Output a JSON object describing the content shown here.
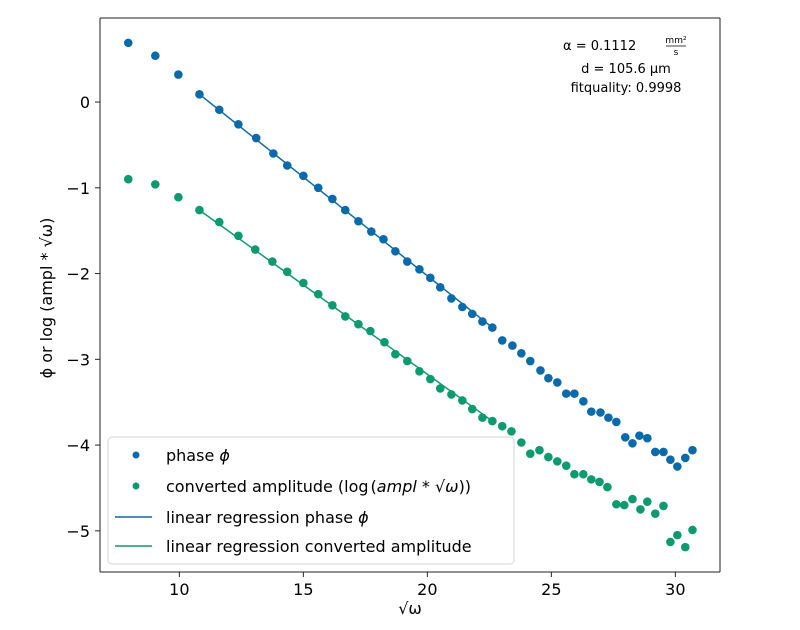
{
  "chart_data": {
    "type": "scatter",
    "title": "",
    "xlabel": "√ω",
    "ylabel": "ϕ or log (ampl * √ω)",
    "xlim": [
      6.8,
      31.8
    ],
    "ylim": [
      -5.48,
      0.98
    ],
    "grid": false,
    "xticks": [
      10,
      15,
      20,
      25,
      30
    ],
    "yticks": [
      0,
      -1,
      -2,
      -3,
      -4,
      -5
    ],
    "xtick_labels": [
      "10",
      "15",
      "20",
      "25",
      "30"
    ],
    "ytick_labels": [
      "0",
      "−1",
      "−2",
      "−3",
      "−4",
      "−5"
    ],
    "colors": {
      "phase": "#0b6aaa",
      "amplitude": "#0d9a6e",
      "axis": "#000000"
    },
    "legend": {
      "placement": "lower-left",
      "entries": [
        {
          "label_parts": [
            "phase ",
            "ϕ"
          ],
          "kind": "marker",
          "series": "phase"
        },
        {
          "label_parts": [
            "converted amplitude (log",
            "(",
            "ampl",
            " * ",
            "√ω",
            "))"
          ],
          "kind": "marker",
          "series": "amplitude"
        },
        {
          "label_parts": [
            "linear regression phase ",
            "ϕ"
          ],
          "kind": "line",
          "series": "phase"
        },
        {
          "label_parts": [
            "linear regression converted amplitude"
          ],
          "kind": "line",
          "series": "amplitude"
        }
      ]
    },
    "annotation": {
      "alpha_prefix": "α = 0.1112 ",
      "alpha_unit_num": "mm²",
      "alpha_unit_den": "s",
      "d_line": "d = 105.6 μm",
      "fit_line": "fitquality: 0.9998"
    },
    "series": [
      {
        "name": "phase ϕ",
        "kind": "scatter",
        "color_key": "phase",
        "x": [
          7.94,
          9.03,
          9.96,
          10.81,
          11.61,
          12.38,
          13.1,
          13.79,
          14.35,
          15.0,
          15.6,
          16.17,
          16.69,
          17.22,
          17.74,
          18.23,
          18.71,
          19.19,
          19.68,
          20.12,
          20.52,
          20.97,
          21.41,
          21.81,
          22.22,
          22.62,
          23.02,
          23.43,
          23.79,
          24.15,
          24.56,
          24.88,
          25.24,
          25.6,
          25.93,
          26.29,
          26.61,
          26.98,
          27.3,
          27.62,
          27.98,
          28.27,
          28.55,
          28.87,
          29.19,
          29.52,
          29.8,
          30.08,
          30.4,
          30.69
        ],
        "y": [
          0.69,
          0.54,
          0.32,
          0.09,
          -0.09,
          -0.26,
          -0.42,
          -0.6,
          -0.74,
          -0.86,
          -1.0,
          -1.13,
          -1.26,
          -1.39,
          -1.51,
          -1.6,
          -1.74,
          -1.86,
          -1.95,
          -2.05,
          -2.16,
          -2.29,
          -2.39,
          -2.47,
          -2.56,
          -2.63,
          -2.78,
          -2.84,
          -2.93,
          -3.02,
          -3.13,
          -3.22,
          -3.27,
          -3.4,
          -3.4,
          -3.49,
          -3.61,
          -3.62,
          -3.68,
          -3.73,
          -3.91,
          -3.98,
          -3.89,
          -3.92,
          -4.08,
          -4.08,
          -4.17,
          -4.25,
          -4.15,
          -4.06
        ]
      },
      {
        "name": "converted amplitude (log(ampl*√ω))",
        "kind": "scatter",
        "color_key": "amplitude",
        "x": [
          7.94,
          9.03,
          9.96,
          10.81,
          11.61,
          12.38,
          13.06,
          13.75,
          14.35,
          15.0,
          15.6,
          16.17,
          16.69,
          17.22,
          17.7,
          18.27,
          18.71,
          19.19,
          19.68,
          20.12,
          20.52,
          20.97,
          21.41,
          21.81,
          22.22,
          22.62,
          23.02,
          23.39,
          23.79,
          24.15,
          24.52,
          24.88,
          25.24,
          25.6,
          25.93,
          26.29,
          26.61,
          26.94,
          27.26,
          27.62,
          27.94,
          28.27,
          28.59,
          28.87,
          29.19,
          29.52,
          29.8,
          30.08,
          30.4,
          30.69
        ],
        "y": [
          -0.9,
          -0.96,
          -1.11,
          -1.26,
          -1.4,
          -1.56,
          -1.72,
          -1.86,
          -1.98,
          -2.11,
          -2.24,
          -2.37,
          -2.5,
          -2.59,
          -2.67,
          -2.8,
          -2.94,
          -3.02,
          -3.14,
          -3.23,
          -3.34,
          -3.41,
          -3.48,
          -3.58,
          -3.68,
          -3.72,
          -3.78,
          -3.84,
          -3.97,
          -4.1,
          -4.06,
          -4.14,
          -4.19,
          -4.24,
          -4.34,
          -4.34,
          -4.4,
          -4.43,
          -4.49,
          -4.69,
          -4.7,
          -4.63,
          -4.75,
          -4.66,
          -4.8,
          -4.71,
          -5.13,
          -5.05,
          -5.19,
          -4.99
        ]
      },
      {
        "name": "linear regression phase ϕ",
        "kind": "line",
        "color_key": "phase",
        "x": [
          10.81,
          22.62
        ],
        "y": [
          0.09,
          -2.63
        ]
      },
      {
        "name": "linear regression converted amplitude",
        "kind": "line",
        "color_key": "amplitude",
        "x": [
          10.81,
          22.62
        ],
        "y": [
          -1.26,
          -3.72
        ]
      }
    ]
  }
}
